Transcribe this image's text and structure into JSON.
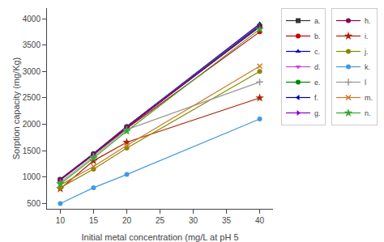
{
  "chart_data": {
    "type": "line",
    "x": [
      10,
      15,
      20,
      40
    ],
    "series": [
      {
        "name": "a.",
        "color": "#333333",
        "marker": "square",
        "values": [
          950,
          1430,
          1940,
          3850
        ]
      },
      {
        "name": "b.",
        "color": "#cc0000",
        "marker": "circle",
        "values": [
          945,
          1425,
          1920,
          3750
        ]
      },
      {
        "name": "c.",
        "color": "#0000dd",
        "marker": "triangle-up",
        "values": [
          960,
          1445,
          1960,
          3900
        ]
      },
      {
        "name": "d.",
        "color": "#cc44cc",
        "marker": "triangle-down",
        "values": [
          955,
          1440,
          1955,
          3880
        ]
      },
      {
        "name": "e.",
        "color": "#008800",
        "marker": "circle",
        "values": [
          960,
          1445,
          1960,
          3870
        ]
      },
      {
        "name": "f.",
        "color": "#000099",
        "marker": "triangle-left",
        "values": [
          950,
          1435,
          1945,
          3860
        ]
      },
      {
        "name": "g.",
        "color": "#8800cc",
        "marker": "triangle-right",
        "values": [
          955,
          1438,
          1950,
          3855
        ]
      },
      {
        "name": "h.",
        "color": "#880055",
        "marker": "circle",
        "values": [
          948,
          1432,
          1942,
          3845
        ]
      },
      {
        "name": "i.",
        "color": "#aa2200",
        "marker": "star",
        "values": [
          780,
          1310,
          1660,
          2500
        ]
      },
      {
        "name": "j.",
        "color": "#888800",
        "marker": "circle",
        "values": [
          800,
          1150,
          1550,
          3000
        ]
      },
      {
        "name": "k.",
        "color": "#4499dd",
        "marker": "circle",
        "values": [
          500,
          800,
          1050,
          2100
        ]
      },
      {
        "name": "l",
        "color": "#999999",
        "marker": "plus",
        "values": [
          900,
          1390,
          1900,
          2800
        ]
      },
      {
        "name": "m.",
        "color": "#cc7722",
        "marker": "x",
        "values": [
          850,
          1200,
          1600,
          3100
        ]
      },
      {
        "name": "n.",
        "color": "#33aa33",
        "marker": "star",
        "values": [
          870,
          1360,
          1870,
          3800
        ]
      }
    ],
    "xlabel": "Initial metal concentration (mg/L at pH 5",
    "ylabel": "Sorption capacity (mg/Kg)",
    "xlim": [
      8,
      42
    ],
    "ylim": [
      400,
      4200
    ],
    "xticks": [
      10,
      15,
      20,
      25,
      30,
      35,
      40
    ],
    "yticks": [
      500,
      1000,
      1500,
      2000,
      2500,
      3000,
      3500,
      4000
    ],
    "grid": false,
    "legend": "right"
  }
}
